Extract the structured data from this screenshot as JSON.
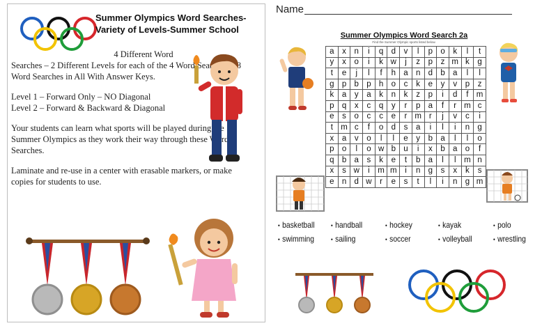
{
  "left": {
    "title": "Summer Olympics Word Searches-Variety of Levels-Summer School",
    "count_line": "4 Different Word",
    "count_rest": "Searches – 2 Different Levels for each of the 4 Word Searches – 8 Word Searches in All With Answer Keys.",
    "level1": "Level 1 – Forward Only – NO Diagonal",
    "level2": "Level 2 – Forward & Backward & Diagonal",
    "para_learn": "Your students can learn what sports will be played during the Summer Olympics as they work their way through these Word Searches.",
    "para_laminate": "Laminate and re-use in a center with erasable markers, or make copies for students to use."
  },
  "right": {
    "name_label": "Name",
    "ws_title": "Summer Olympics Word Search 2a",
    "ws_subtitle": "Find the Summer Olympic sports listed below.",
    "grid": [
      [
        "a",
        "x",
        "n",
        "i",
        "q",
        "d",
        "v",
        "l",
        "p",
        "o",
        "k",
        "l",
        "t"
      ],
      [
        "y",
        "x",
        "o",
        "i",
        "k",
        "w",
        "j",
        "z",
        "p",
        "z",
        "m",
        "k",
        "g"
      ],
      [
        "t",
        "e",
        "j",
        "l",
        "f",
        "h",
        "a",
        "n",
        "d",
        "b",
        "a",
        "l",
        "l"
      ],
      [
        "g",
        "p",
        "b",
        "p",
        "h",
        "o",
        "c",
        "k",
        "e",
        "y",
        "v",
        "p",
        "z"
      ],
      [
        "k",
        "a",
        "y",
        "a",
        "k",
        "n",
        "k",
        "z",
        "p",
        "i",
        "d",
        "f",
        "m"
      ],
      [
        "p",
        "q",
        "x",
        "c",
        "q",
        "y",
        "r",
        "p",
        "a",
        "f",
        "r",
        "m",
        "c"
      ],
      [
        "e",
        "s",
        "o",
        "c",
        "c",
        "e",
        "r",
        "m",
        "r",
        "j",
        "v",
        "c",
        "i"
      ],
      [
        "t",
        "m",
        "c",
        "f",
        "o",
        "d",
        "s",
        "a",
        "i",
        "l",
        "i",
        "n",
        "g"
      ],
      [
        "x",
        "a",
        "v",
        "o",
        "l",
        "l",
        "e",
        "y",
        "b",
        "a",
        "l",
        "l",
        "o"
      ],
      [
        "p",
        "o",
        "l",
        "o",
        "w",
        "b",
        "u",
        "i",
        "x",
        "b",
        "a",
        "o",
        "f"
      ],
      [
        "q",
        "b",
        "a",
        "s",
        "k",
        "e",
        "t",
        "b",
        "a",
        "l",
        "l",
        "m",
        "n"
      ],
      [
        "x",
        "s",
        "w",
        "i",
        "m",
        "m",
        "i",
        "n",
        "g",
        "s",
        "x",
        "k",
        "s"
      ],
      [
        "e",
        "n",
        "d",
        "w",
        "r",
        "e",
        "s",
        "t",
        "l",
        "i",
        "n",
        "g",
        "m"
      ]
    ],
    "words": [
      "basketball",
      "handball",
      "hockey",
      "kayak",
      "polo",
      "swimming",
      "sailing",
      "soccer",
      "volleyball",
      "wrestling"
    ],
    "bullet": "•"
  },
  "colors": {
    "ring_blue": "#1f5fbf",
    "ring_yellow": "#f2c300",
    "ring_black": "#111111",
    "ring_green": "#1f9d3a",
    "ring_red": "#d6262b",
    "ribbon_red": "#c8262c",
    "ribbon_blue": "#2a4fa0",
    "gold": "#d7a526",
    "silver": "#b9b9b9",
    "bronze": "#c7782e"
  }
}
